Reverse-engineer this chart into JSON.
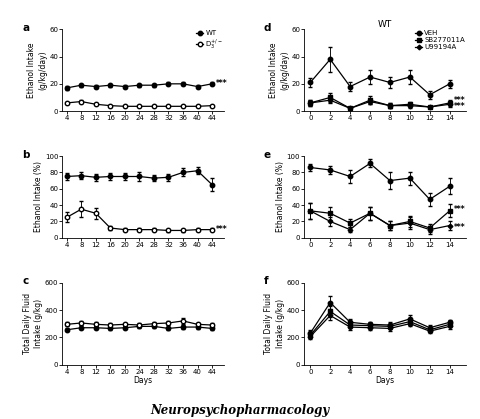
{
  "panel_a": {
    "days": [
      4,
      8,
      12,
      16,
      20,
      24,
      28,
      32,
      36,
      40,
      44
    ],
    "WT_mean": [
      17,
      19,
      18,
      19,
      18,
      19,
      19,
      20,
      20,
      18,
      20
    ],
    "WT_sem": [
      1.2,
      1.2,
      1.2,
      1.2,
      1.2,
      1.2,
      1.2,
      1.2,
      1.2,
      1.2,
      1.2
    ],
    "D3_mean": [
      6,
      7,
      5,
      4,
      3.5,
      3.5,
      3.5,
      3.5,
      3.5,
      3.5,
      4
    ],
    "D3_sem": [
      1.0,
      0.8,
      0.8,
      0.7,
      0.6,
      0.6,
      0.6,
      0.6,
      0.6,
      0.6,
      0.6
    ],
    "ylabel": "Ethanol Intake\n(g/kg/day)",
    "ylim": [
      0,
      60
    ],
    "yticks": [
      0,
      20,
      40,
      60
    ],
    "sig_text": "***",
    "label1": "WT",
    "label2": "D₃⁺/⁺"
  },
  "panel_b": {
    "days": [
      4,
      8,
      12,
      16,
      20,
      24,
      28,
      32,
      36,
      40,
      44
    ],
    "WT_mean": [
      75,
      76,
      74,
      75,
      75,
      75,
      73,
      74,
      80,
      82,
      65
    ],
    "WT_sem": [
      4,
      4,
      4,
      4,
      4,
      5,
      4,
      4,
      5,
      4,
      8
    ],
    "D3_mean": [
      25,
      35,
      30,
      12,
      10,
      10,
      10,
      9,
      9,
      10,
      10
    ],
    "D3_sem": [
      6,
      10,
      7,
      3,
      2,
      2,
      2,
      2,
      2,
      2,
      2
    ],
    "ylabel": "Ethanol Intake (%)",
    "ylim": [
      0,
      100
    ],
    "yticks": [
      0,
      20,
      40,
      60,
      80,
      100
    ],
    "sig_text": "***"
  },
  "panel_c": {
    "days": [
      4,
      8,
      12,
      16,
      20,
      24,
      28,
      32,
      36,
      40,
      44
    ],
    "WT_mean": [
      255,
      270,
      270,
      265,
      270,
      280,
      280,
      265,
      275,
      275,
      265
    ],
    "WT_sem": [
      12,
      12,
      12,
      12,
      12,
      12,
      12,
      12,
      12,
      12,
      12
    ],
    "D3_mean": [
      295,
      305,
      295,
      290,
      295,
      290,
      300,
      305,
      320,
      295,
      290
    ],
    "D3_sem": [
      15,
      15,
      15,
      12,
      12,
      12,
      12,
      15,
      25,
      12,
      12
    ],
    "ylabel": "Total Daily Fluid\nIntake (g/kg)",
    "ylim": [
      0,
      600
    ],
    "yticks": [
      0,
      200,
      400,
      600
    ]
  },
  "panel_d": {
    "days": [
      0,
      2,
      4,
      6,
      8,
      10,
      12,
      14
    ],
    "VEH_mean": [
      21,
      38,
      18,
      25,
      21,
      25,
      12,
      20
    ],
    "VEH_sem": [
      3,
      9,
      3,
      5,
      4,
      5,
      3,
      3
    ],
    "SB_mean": [
      6,
      10,
      2,
      8,
      4,
      5,
      3,
      6
    ],
    "SB_sem": [
      2,
      3,
      1,
      3,
      2,
      2,
      1,
      2
    ],
    "U99_mean": [
      6,
      8,
      2,
      7,
      4,
      4,
      3,
      5
    ],
    "U99_sem": [
      2,
      2,
      1,
      2,
      2,
      2,
      1,
      2
    ],
    "ylabel": "Ethanol Intake\n(g/kg/day)",
    "ylim": [
      0,
      60
    ],
    "yticks": [
      0,
      20,
      40,
      60
    ],
    "title": "WT",
    "sig_text": "***"
  },
  "panel_e": {
    "days": [
      0,
      2,
      4,
      6,
      8,
      10,
      12,
      14
    ],
    "VEH_mean": [
      86,
      83,
      75,
      91,
      70,
      73,
      47,
      63
    ],
    "VEH_sem": [
      4,
      5,
      8,
      5,
      10,
      8,
      8,
      10
    ],
    "SB_mean": [
      33,
      30,
      18,
      30,
      15,
      20,
      12,
      33
    ],
    "SB_sem": [
      10,
      8,
      5,
      8,
      6,
      7,
      5,
      8
    ],
    "U99_mean": [
      33,
      20,
      10,
      30,
      15,
      18,
      10,
      15
    ],
    "U99_sem": [
      10,
      5,
      3,
      8,
      6,
      7,
      5,
      5
    ],
    "ylabel": "Ethanol Intake (%)",
    "ylim": [
      0,
      100
    ],
    "yticks": [
      0,
      20,
      40,
      60,
      80,
      100
    ],
    "sig_text": "***"
  },
  "panel_f": {
    "days": [
      0,
      2,
      4,
      6,
      8,
      10,
      12,
      14
    ],
    "VEH_mean": [
      230,
      455,
      310,
      295,
      290,
      335,
      270,
      310
    ],
    "VEH_sem": [
      20,
      50,
      25,
      20,
      20,
      25,
      20,
      20
    ],
    "SB_mean": [
      215,
      390,
      290,
      285,
      280,
      315,
      255,
      295
    ],
    "SB_sem": [
      18,
      40,
      22,
      18,
      18,
      22,
      18,
      18
    ],
    "U99_mean": [
      205,
      360,
      275,
      270,
      265,
      300,
      245,
      280
    ],
    "U99_sem": [
      15,
      35,
      20,
      16,
      16,
      20,
      16,
      16
    ],
    "ylabel": "Total Daily Fluid\nIntake (g/kg)",
    "ylim": [
      0,
      600
    ],
    "yticks": [
      0,
      200,
      400,
      600
    ]
  },
  "xlabel_left": "Days",
  "xlabel_right": "Days",
  "bottom_label": "Neuropsychopharmacology"
}
